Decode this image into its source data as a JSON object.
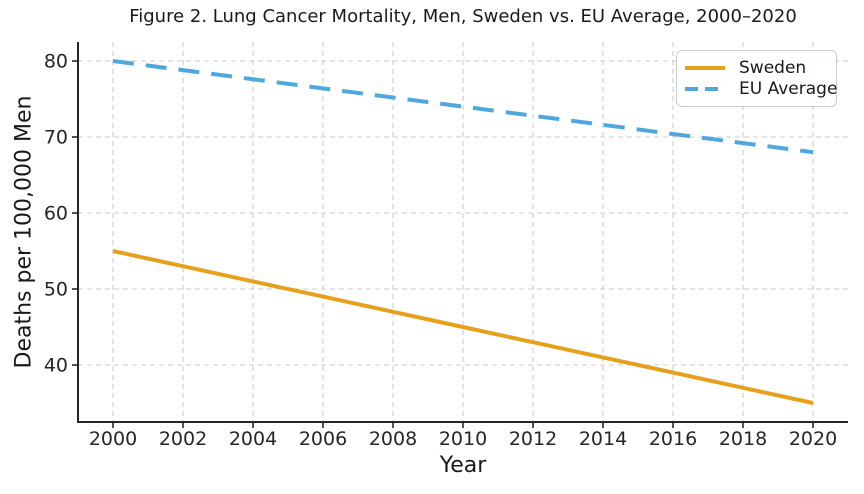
{
  "figure": {
    "title": "Figure 2. Lung Cancer Mortality, Men, Sweden vs. EU Average, 2000–2020",
    "xlabel": "Year",
    "ylabel": "Deaths per 100,000 Men",
    "background_color": "#ffffff",
    "text_color": "#1a1a1a",
    "axis_color": "#262626",
    "grid_color": "#cccccc"
  },
  "legend": {
    "position": "upper-right",
    "entries": [
      {
        "label": "Sweden",
        "color": "#E6A11C",
        "line_style": "solid"
      },
      {
        "label": "EU Average",
        "color": "#4FA8DC",
        "line_style": "dashed"
      }
    ]
  },
  "chart_data": {
    "type": "line",
    "title": "Figure 2. Lung Cancer Mortality, Men, Sweden vs. EU Average, 2000–2020",
    "xlabel": "Year",
    "ylabel": "Deaths per 100,000 Men",
    "x": [
      2000,
      2002,
      2004,
      2006,
      2008,
      2010,
      2012,
      2014,
      2016,
      2018,
      2020
    ],
    "series": [
      {
        "name": "Sweden",
        "color": "#E6A11C",
        "line_style": "solid",
        "line_width": 4,
        "values": [
          55,
          53,
          51,
          49,
          47,
          45,
          43,
          41,
          39,
          37,
          35
        ]
      },
      {
        "name": "EU Average",
        "color": "#4FA8DC",
        "line_style": "dashed",
        "line_width": 4,
        "values": [
          80,
          78.8,
          77.6,
          76.4,
          75.2,
          74,
          72.8,
          71.6,
          70.4,
          69.2,
          68
        ]
      }
    ],
    "xticks": [
      2000,
      2002,
      2004,
      2006,
      2008,
      2010,
      2012,
      2014,
      2016,
      2018,
      2020
    ],
    "yticks": [
      40,
      50,
      60,
      70,
      80
    ],
    "xlim": [
      1999,
      2021
    ],
    "ylim": [
      32.5,
      82.5
    ],
    "grid": true,
    "grid_style": "dashed",
    "legend_position": "upper right",
    "spines": [
      "left",
      "bottom"
    ]
  }
}
